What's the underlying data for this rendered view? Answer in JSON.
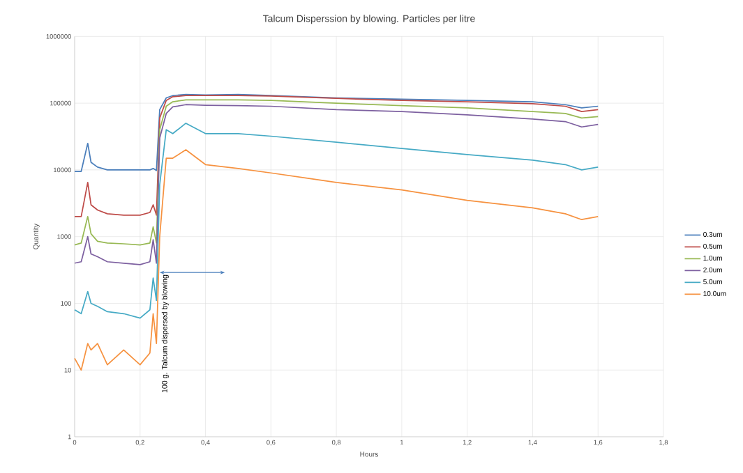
{
  "chart_data": {
    "type": "line",
    "title": "Talcum Disperssion by blowing. Particles per litre",
    "xlabel": "Hours",
    "ylabel": "Quantity",
    "x": [
      0,
      0.02,
      0.04,
      0.05,
      0.07,
      0.1,
      0.15,
      0.2,
      0.23,
      0.24,
      0.25,
      0.26,
      0.28,
      0.3,
      0.34,
      0.4,
      0.5,
      0.6,
      0.8,
      1.0,
      1.2,
      1.4,
      1.5,
      1.55,
      1.6
    ],
    "series": [
      {
        "name": "0.3um",
        "color": "#4a7ebb",
        "values": [
          9500,
          9500,
          25000,
          13000,
          11000,
          10000,
          10000,
          10000,
          10000,
          10500,
          9800,
          80000,
          120000,
          130000,
          135000,
          133000,
          135000,
          130000,
          120000,
          115000,
          110000,
          105000,
          95000,
          85000,
          90000
        ]
      },
      {
        "name": "0.5um",
        "color": "#be4b48",
        "values": [
          2000,
          2000,
          6500,
          3000,
          2500,
          2200,
          2100,
          2100,
          2300,
          3000,
          2100,
          60000,
          110000,
          125000,
          130000,
          130000,
          130000,
          128000,
          118000,
          110000,
          105000,
          98000,
          90000,
          75000,
          80000
        ]
      },
      {
        "name": "1.0um",
        "color": "#98b954",
        "values": [
          750,
          800,
          2000,
          1100,
          850,
          800,
          780,
          750,
          800,
          1400,
          800,
          40000,
          90000,
          105000,
          112000,
          112000,
          112000,
          110000,
          100000,
          92000,
          85000,
          75000,
          70000,
          60000,
          63000
        ]
      },
      {
        "name": "2.0um",
        "color": "#7d60a0",
        "values": [
          400,
          420,
          1000,
          550,
          500,
          420,
          400,
          380,
          420,
          900,
          400,
          30000,
          70000,
          88000,
          95000,
          93000,
          92000,
          90000,
          80000,
          75000,
          67000,
          58000,
          53000,
          44000,
          48000
        ]
      },
      {
        "name": "5.0um",
        "color": "#46aac5",
        "values": [
          80,
          70,
          150,
          100,
          90,
          75,
          70,
          60,
          80,
          240,
          110,
          6000,
          40000,
          35000,
          50000,
          35000,
          35000,
          32000,
          26000,
          21000,
          17000,
          14000,
          12000,
          10000,
          11000
        ]
      },
      {
        "name": "10.0um",
        "color": "#f69240",
        "values": [
          15,
          10,
          25,
          20,
          25,
          12,
          20,
          12,
          18,
          70,
          25,
          1000,
          15000,
          15000,
          20000,
          12000,
          10500,
          9000,
          6500,
          5000,
          3500,
          2700,
          2200,
          1800,
          2000
        ]
      }
    ],
    "annotations": [
      {
        "text": "100 g. Talcum dispersed by blowing",
        "x": 0.26,
        "y": 290
      }
    ],
    "log": "y",
    "grid": true,
    "legend": "right",
    "marker": "none",
    "line_style": "solid",
    "xlim": [
      0,
      1.8
    ],
    "ylim": [
      1,
      1000000
    ],
    "xticks": [
      0,
      {
        "value": 0.2,
        "label": "0,2"
      },
      {
        "value": 0.4,
        "label": "0,4"
      },
      {
        "value": 0.6,
        "label": "0,6"
      },
      {
        "value": 0.8,
        "label": "0,8"
      },
      1,
      {
        "value": 1.2,
        "label": "1,2"
      },
      {
        "value": 1.4,
        "label": "1,4"
      },
      {
        "value": 1.6,
        "label": "1,6"
      },
      {
        "value": 1.8,
        "label": "1,8"
      }
    ],
    "yticks": [
      1,
      10,
      100,
      1000,
      10000,
      100000,
      1000000
    ]
  }
}
